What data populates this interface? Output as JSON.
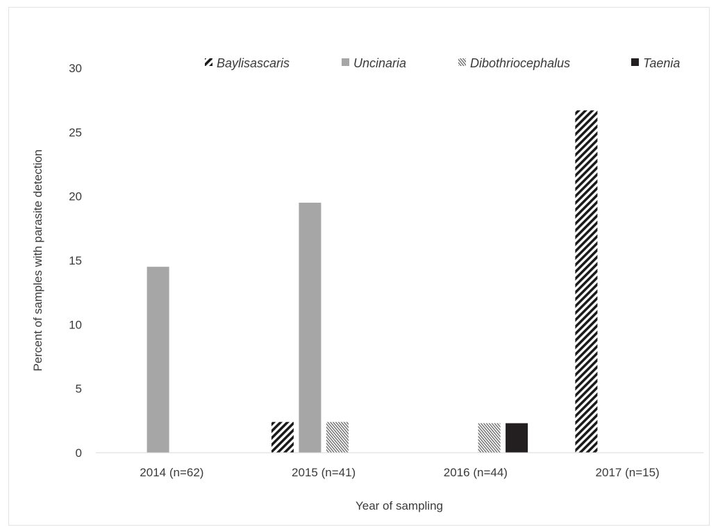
{
  "chart_data": {
    "type": "bar",
    "title": "",
    "xlabel": "Year of sampling",
    "ylabel": "Percent of samples with parasite detection",
    "ylim": [
      0,
      30
    ],
    "yticks": [
      0,
      5,
      10,
      15,
      20,
      25,
      30
    ],
    "grid": false,
    "legend_position": "top",
    "categories": [
      "2014 (n=62)",
      "2015 (n=41)",
      "2016 (n=44)",
      "2017 (n=15)"
    ],
    "series": [
      {
        "name": "Baylisascaris",
        "values": [
          0,
          2.4,
          0,
          26.7
        ],
        "pattern": "diagonal-stripes",
        "color": "#1a1a1a"
      },
      {
        "name": "Uncinaria",
        "values": [
          14.5,
          19.5,
          0,
          0
        ],
        "pattern": "solid",
        "color": "#a6a6a7"
      },
      {
        "name": "Dibothriocephalus",
        "values": [
          0,
          2.4,
          2.3,
          0
        ],
        "pattern": "fine-hatch",
        "color": "#7a7a7a"
      },
      {
        "name": "Taenia",
        "values": [
          0,
          0,
          2.3,
          0
        ],
        "pattern": "solid",
        "color": "#231f20"
      }
    ]
  }
}
